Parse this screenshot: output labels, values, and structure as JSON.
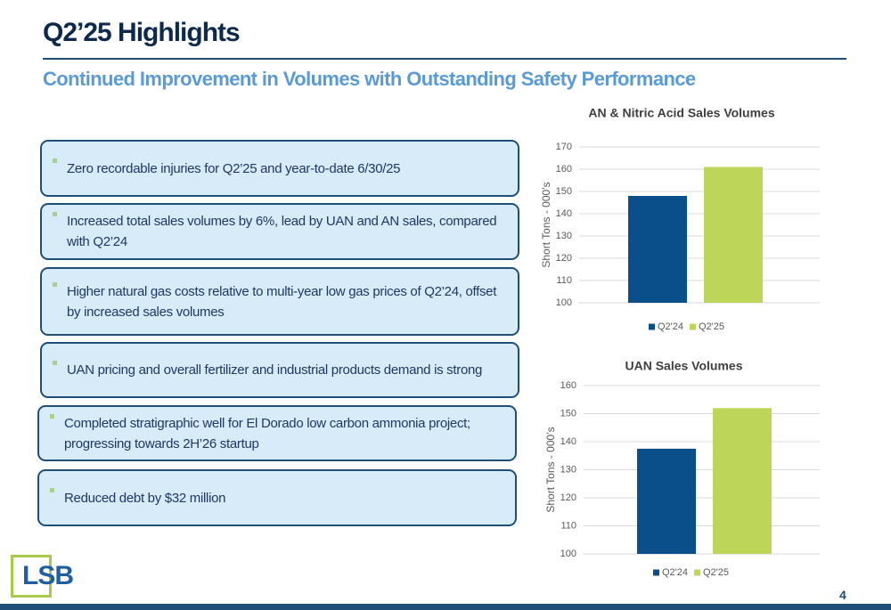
{
  "header": {
    "title": "Q2’25 Highlights",
    "subtitle": "Continued Improvement in Volumes with Outstanding Safety Performance"
  },
  "bullets": [
    "Zero recordable injuries for Q2’25 and year-to-date 6/30/25",
    "Increased total sales volumes by 6%, lead by UAN and AN sales, compared with Q2’24",
    "Higher natural gas costs relative to multi-year low gas prices of Q2’24, offset by increased sales volumes",
    "UAN pricing and overall fertilizer and industrial products demand is strong",
    "Completed stratigraphic well for El Dorado low carbon ammonia project; progressing towards 2H’26 startup",
    "Reduced debt by $32 million"
  ],
  "logo": "LSB",
  "page_number": "4",
  "chart_data": [
    {
      "type": "bar",
      "title": "AN & Nitric Acid Sales Volumes",
      "y_label": "Short Tons - 000’s",
      "series": [
        {
          "name": "Q2'24",
          "color": "#0b4f8a",
          "values": [
            148
          ]
        },
        {
          "name": "Q2'25",
          "color": "#bdd65a",
          "values": [
            161
          ]
        }
      ],
      "ylim": [
        100,
        170
      ],
      "yticks": [
        100,
        110,
        120,
        130,
        140,
        150,
        160,
        170
      ],
      "grid": true,
      "legend": "bottom"
    },
    {
      "type": "bar",
      "title": "UAN Sales Volumes",
      "y_label": "Short Tons - 000’s",
      "series": [
        {
          "name": "Q2'24",
          "color": "#0b4f8a",
          "values": [
            137.5
          ]
        },
        {
          "name": "Q2'25",
          "color": "#bdd65a",
          "values": [
            152
          ]
        }
      ],
      "ylim": [
        100,
        160
      ],
      "yticks": [
        100,
        110,
        120,
        130,
        140,
        150,
        160
      ],
      "grid": true,
      "legend": "bottom"
    }
  ]
}
